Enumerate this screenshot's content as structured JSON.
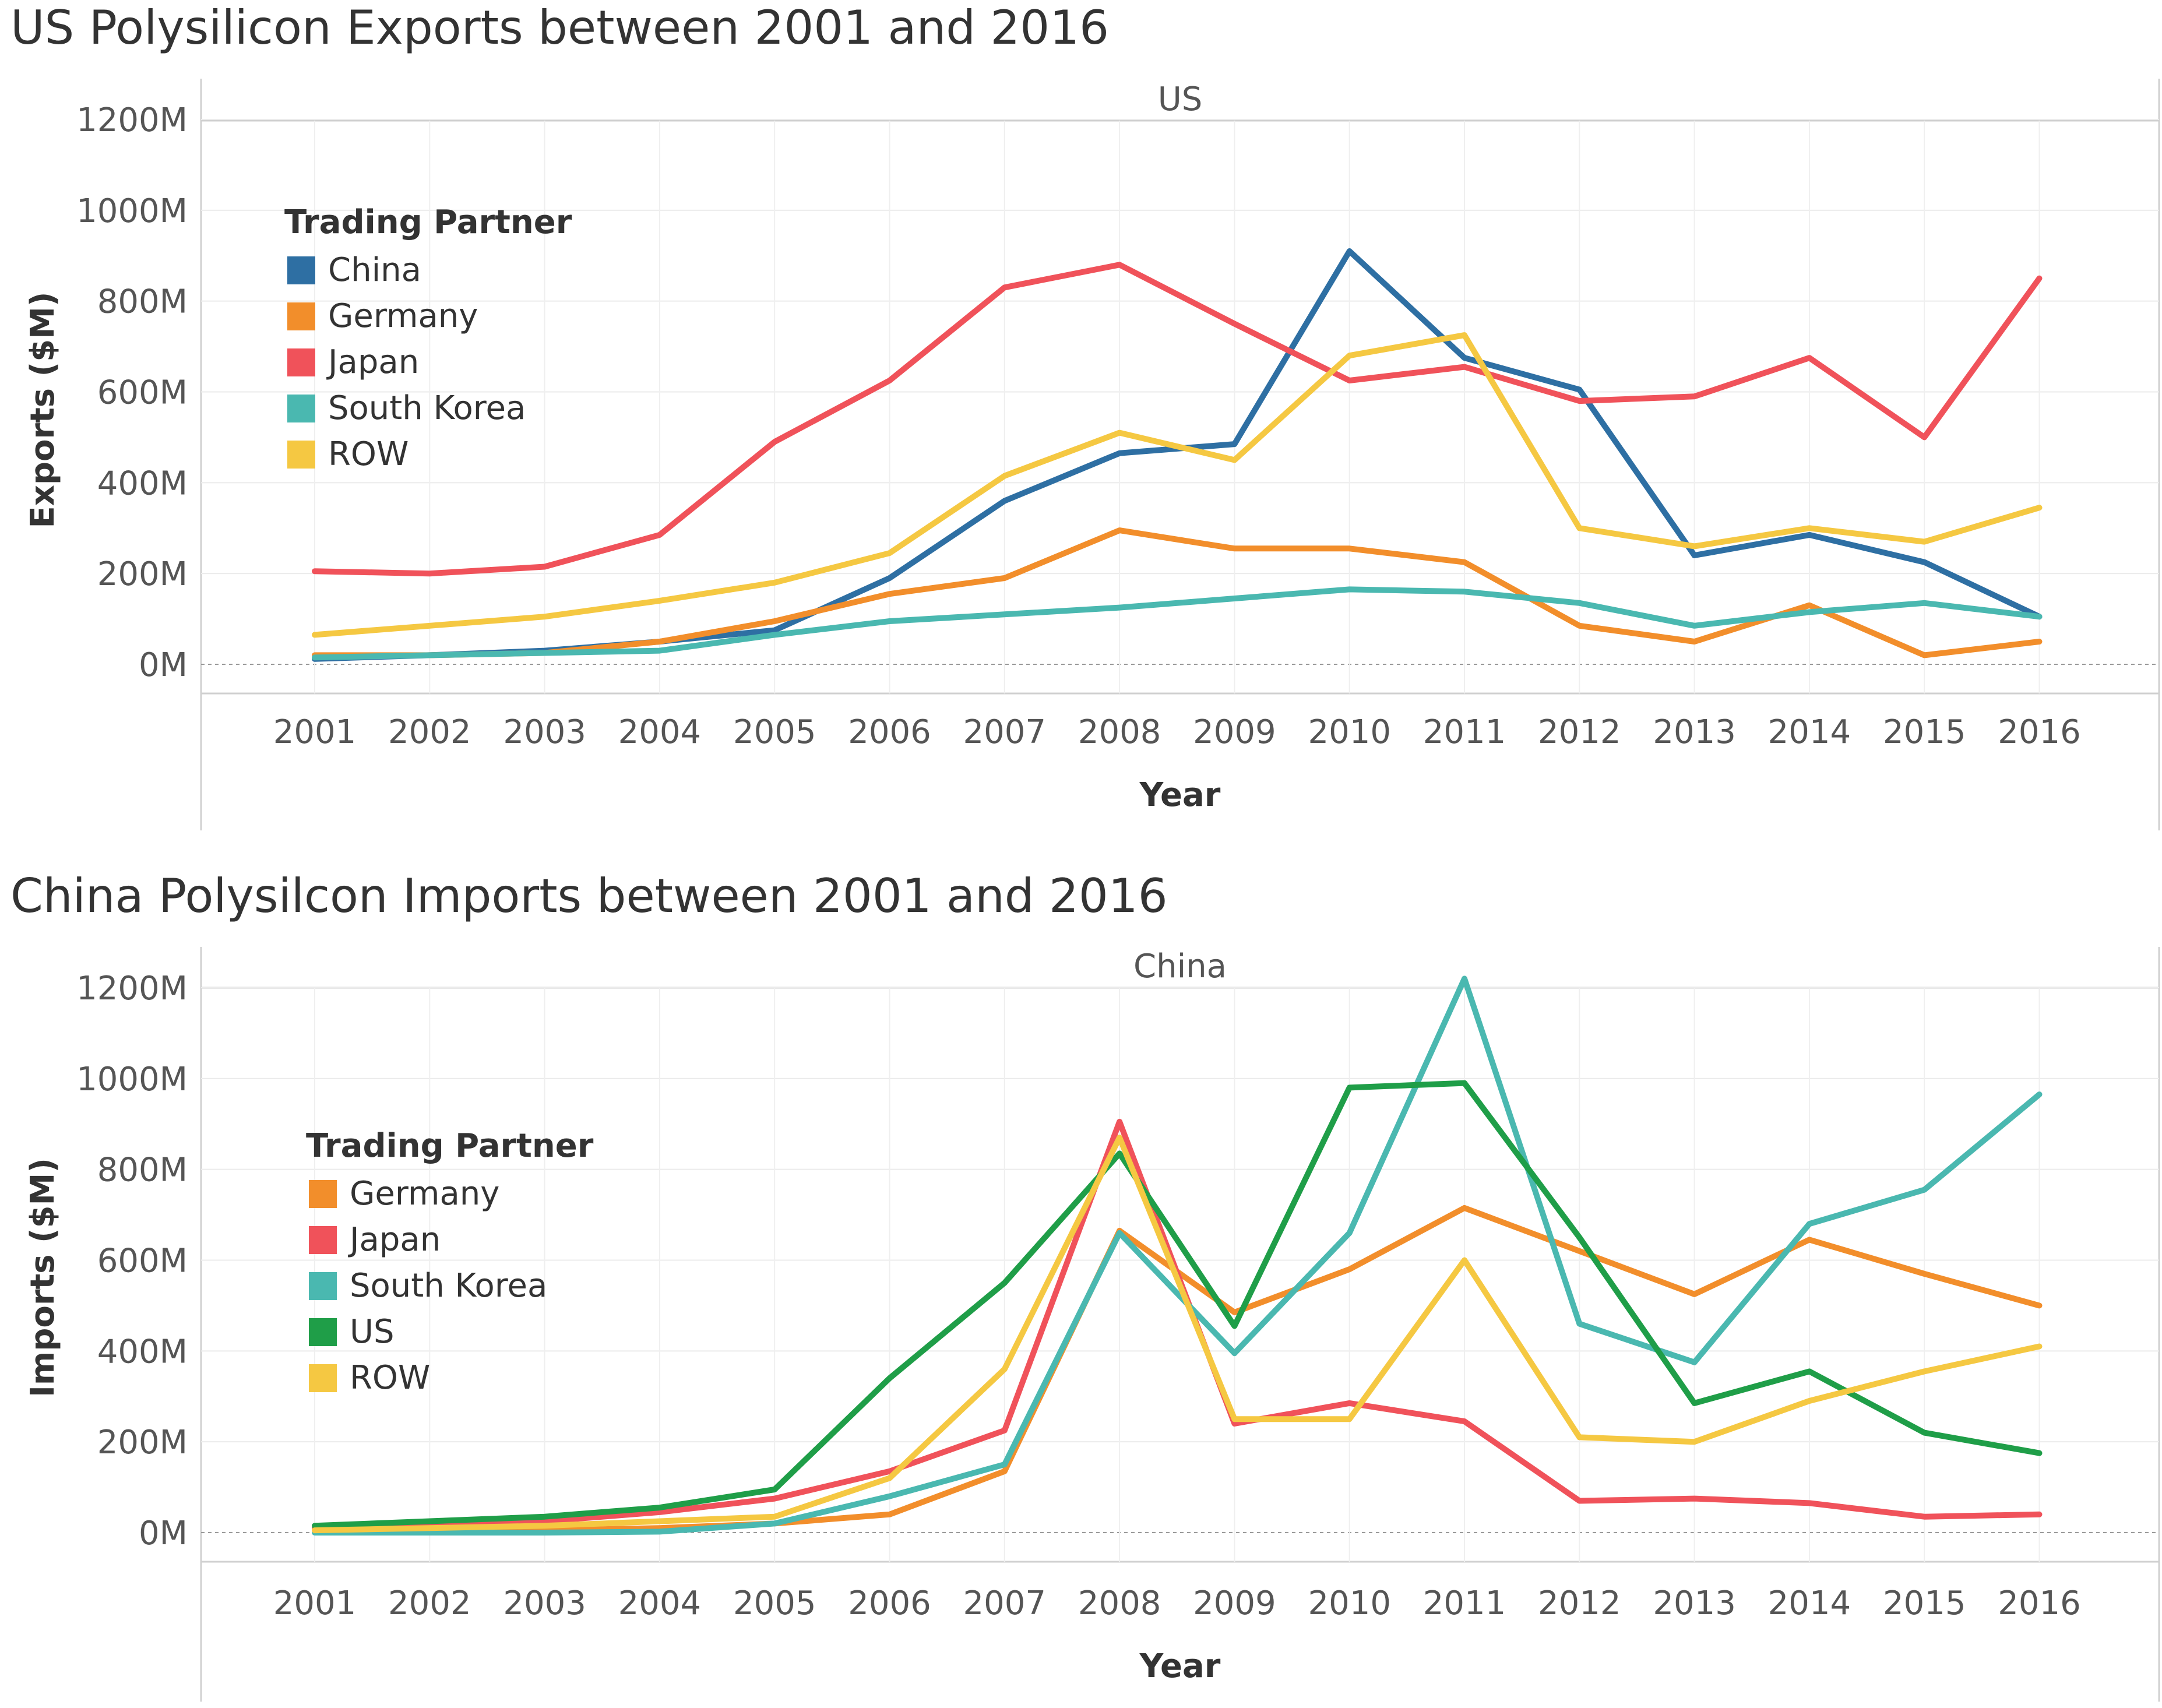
{
  "chart_data": [
    {
      "type": "line",
      "title": "US Polysilicon Exports between 2001 and 2016",
      "panel_header": "US",
      "xlabel": "Year",
      "ylabel": "Exports ($M)",
      "ylim": [
        0,
        1200
      ],
      "y_ticks": [
        "0M",
        "200M",
        "400M",
        "600M",
        "800M",
        "1000M",
        "1200M"
      ],
      "categories": [
        "2001",
        "2002",
        "2003",
        "2004",
        "2005",
        "2006",
        "2007",
        "2008",
        "2009",
        "2010",
        "2011",
        "2012",
        "2013",
        "2014",
        "2015",
        "2016"
      ],
      "legend_title": "Trading Partner",
      "series": [
        {
          "name": "China",
          "color": "#2e6fa3",
          "values": [
            12,
            20,
            30,
            50,
            75,
            190,
            360,
            465,
            485,
            910,
            675,
            605,
            240,
            285,
            225,
            105
          ]
        },
        {
          "name": "Germany",
          "color": "#f28e2b",
          "values": [
            20,
            20,
            25,
            50,
            95,
            155,
            190,
            295,
            255,
            255,
            225,
            85,
            50,
            130,
            20,
            50
          ]
        },
        {
          "name": "Japan",
          "color": "#f0525a",
          "values": [
            205,
            200,
            215,
            285,
            490,
            625,
            830,
            880,
            750,
            625,
            655,
            580,
            590,
            675,
            500,
            850
          ]
        },
        {
          "name": "South Korea",
          "color": "#4ab8b0",
          "values": [
            15,
            20,
            25,
            30,
            65,
            95,
            110,
            125,
            145,
            165,
            160,
            135,
            85,
            115,
            135,
            105
          ]
        },
        {
          "name": "ROW",
          "color": "#f5c842",
          "values": [
            65,
            85,
            105,
            140,
            180,
            245,
            415,
            510,
            450,
            680,
            725,
            300,
            260,
            300,
            270,
            345
          ]
        }
      ]
    },
    {
      "type": "line",
      "title": "China Polysilcon Imports between 2001 and 2016",
      "panel_header": "China",
      "xlabel": "Year",
      "ylabel": "Imports ($M)",
      "ylim": [
        0,
        1200
      ],
      "y_ticks": [
        "0M",
        "200M",
        "400M",
        "600M",
        "800M",
        "1000M",
        "1200M"
      ],
      "categories": [
        "2001",
        "2002",
        "2003",
        "2004",
        "2005",
        "2006",
        "2007",
        "2008",
        "2009",
        "2010",
        "2011",
        "2012",
        "2013",
        "2014",
        "2015",
        "2016"
      ],
      "legend_title": "Trading Partner",
      "series": [
        {
          "name": "Germany",
          "color": "#f28e2b",
          "values": [
            5,
            5,
            5,
            10,
            20,
            40,
            135,
            665,
            485,
            580,
            715,
            620,
            525,
            645,
            570,
            500
          ]
        },
        {
          "name": "Japan",
          "color": "#f0525a",
          "values": [
            10,
            15,
            25,
            45,
            75,
            135,
            225,
            905,
            240,
            285,
            245,
            70,
            75,
            65,
            35,
            40
          ]
        },
        {
          "name": "South Korea",
          "color": "#4ab8b0",
          "values": [
            0,
            0,
            0,
            2,
            20,
            80,
            150,
            660,
            395,
            660,
            1220,
            460,
            375,
            680,
            755,
            965
          ]
        },
        {
          "name": "US",
          "color": "#1f9e48",
          "values": [
            15,
            25,
            35,
            55,
            95,
            340,
            550,
            835,
            455,
            980,
            990,
            650,
            285,
            355,
            220,
            175
          ]
        },
        {
          "name": "ROW",
          "color": "#f5c842",
          "values": [
            5,
            10,
            15,
            25,
            35,
            120,
            360,
            870,
            250,
            250,
            600,
            210,
            200,
            290,
            355,
            410
          ]
        }
      ]
    }
  ]
}
